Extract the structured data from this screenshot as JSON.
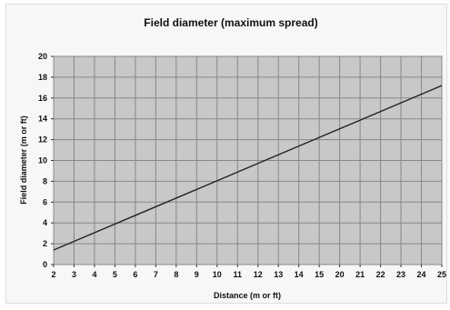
{
  "chart_data": {
    "type": "line",
    "title": "Field diameter (maximum spread)",
    "xlabel": "Distance (m or ft)",
    "ylabel": "Field diameter (m or ft)",
    "x_ticks": [
      2,
      3,
      4,
      5,
      6,
      7,
      8,
      9,
      10,
      11,
      12,
      13,
      14,
      15,
      20,
      21,
      22,
      23,
      24,
      25
    ],
    "y_ticks": [
      0,
      2,
      4,
      6,
      8,
      10,
      12,
      14,
      16,
      18,
      20
    ],
    "ylim": [
      0,
      20
    ],
    "grid": true,
    "colors": {
      "plot_background": "#c8c8c8",
      "grid": "#888888",
      "line": "#222222",
      "frame_background": "#f7f7f7"
    },
    "series": [
      {
        "x": [
          2,
          25
        ],
        "y": [
          1.4,
          17.2
        ]
      }
    ]
  }
}
